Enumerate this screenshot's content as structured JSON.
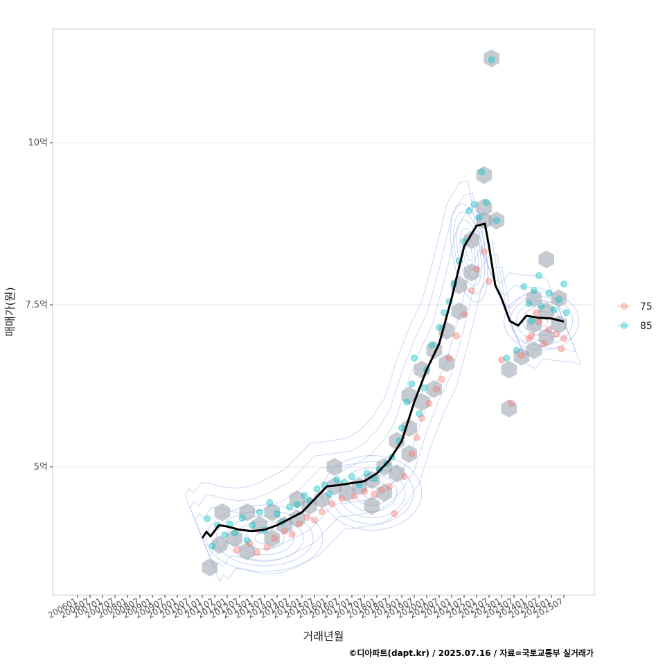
{
  "chart_data": {
    "type": "scatter",
    "xlabel": "거래년월",
    "ylabel": "매매가(원)",
    "caption": "©디아파트(dapt.kr) / 2025.07.16 / 자료=국토교통부 실거래가",
    "x_tick_labels": [
      "200601",
      "200607",
      "200701",
      "200707",
      "200801",
      "200807",
      "200901",
      "200907",
      "201001",
      "201007",
      "201101",
      "201107",
      "201201",
      "201207",
      "201301",
      "201307",
      "201401",
      "201407",
      "201501",
      "201507",
      "201601",
      "201607",
      "201701",
      "201707",
      "201801",
      "201807",
      "201901",
      "201907",
      "202001",
      "202007",
      "202101",
      "202107",
      "202201",
      "202207",
      "202301",
      "202307",
      "202401",
      "202407",
      "202501",
      "202507"
    ],
    "y_ticks": [
      {
        "value": 500000000,
        "label": "5억"
      },
      {
        "value": 750000000,
        "label": "7.5억"
      },
      {
        "value": 1000000000,
        "label": "10억"
      }
    ],
    "ylim": [
      310000000,
      1180000000
    ],
    "grid": true,
    "legend_position": "right",
    "series": [
      {
        "name": "75",
        "color": "#F8766D"
      },
      {
        "name": "85",
        "color": "#00BFC4"
      }
    ],
    "trend_line": {
      "color": "#000000",
      "points": [
        [
          "2011-01",
          390000000
        ],
        [
          "2011-03",
          400000000
        ],
        [
          "2011-05",
          393000000
        ],
        [
          "2011-09",
          410000000
        ],
        [
          "2012-01",
          408000000
        ],
        [
          "2012-07",
          403000000
        ],
        [
          "2013-01",
          401000000
        ],
        [
          "2013-07",
          403000000
        ],
        [
          "2014-01",
          410000000
        ],
        [
          "2014-07",
          420000000
        ],
        [
          "2015-01",
          430000000
        ],
        [
          "2015-07",
          450000000
        ],
        [
          "2016-01",
          470000000
        ],
        [
          "2016-07",
          472000000
        ],
        [
          "2017-01",
          475000000
        ],
        [
          "2017-07",
          478000000
        ],
        [
          "2018-01",
          490000000
        ],
        [
          "2018-07",
          510000000
        ],
        [
          "2019-01",
          540000000
        ],
        [
          "2019-07",
          600000000
        ],
        [
          "2020-01",
          650000000
        ],
        [
          "2020-07",
          690000000
        ],
        [
          "2021-01",
          760000000
        ],
        [
          "2021-07",
          840000000
        ],
        [
          "2022-01",
          872000000
        ],
        [
          "2022-05",
          875000000
        ],
        [
          "2022-07",
          840000000
        ],
        [
          "2022-10",
          780000000
        ],
        [
          "2023-01",
          760000000
        ],
        [
          "2023-05",
          725000000
        ],
        [
          "2023-09",
          718000000
        ],
        [
          "2024-01",
          733000000
        ],
        [
          "2024-07",
          730000000
        ],
        [
          "2025-01",
          729000000
        ],
        [
          "2025-07",
          724000000
        ]
      ]
    },
    "hex_bins": [
      [
        2011.3,
        345000000
      ],
      [
        2011.7,
        380000000
      ],
      [
        2011.8,
        430000000
      ],
      [
        2012.3,
        390000000
      ],
      [
        2012.8,
        370000000
      ],
      [
        2012.8,
        430000000
      ],
      [
        2013.3,
        410000000
      ],
      [
        2013.8,
        390000000
      ],
      [
        2013.8,
        430000000
      ],
      [
        2014.3,
        410000000
      ],
      [
        2014.8,
        450000000
      ],
      [
        2014.8,
        420000000
      ],
      [
        2015.3,
        440000000
      ],
      [
        2015.8,
        450000000
      ],
      [
        2016.3,
        470000000
      ],
      [
        2016.8,
        460000000
      ],
      [
        2016.3,
        500000000
      ],
      [
        2017.3,
        470000000
      ],
      [
        2017.8,
        480000000
      ],
      [
        2017.8,
        440000000
      ],
      [
        2018.3,
        500000000
      ],
      [
        2018.3,
        460000000
      ],
      [
        2018.8,
        540000000
      ],
      [
        2018.8,
        490000000
      ],
      [
        2019.3,
        520000000
      ],
      [
        2019.3,
        560000000
      ],
      [
        2019.8,
        600000000
      ],
      [
        2019.3,
        610000000
      ],
      [
        2019.8,
        650000000
      ],
      [
        2020.3,
        620000000
      ],
      [
        2020.3,
        680000000
      ],
      [
        2020.8,
        710000000
      ],
      [
        2020.8,
        660000000
      ],
      [
        2021.3,
        740000000
      ],
      [
        2021.3,
        780000000
      ],
      [
        2021.8,
        800000000
      ],
      [
        2021.8,
        850000000
      ],
      [
        2022.3,
        880000000
      ],
      [
        2022.3,
        950000000
      ],
      [
        2022.3,
        900000000
      ],
      [
        2022.8,
        880000000
      ],
      [
        2022.6,
        1130000000
      ],
      [
        2023.3,
        650000000
      ],
      [
        2023.8,
        670000000
      ],
      [
        2023.3,
        590000000
      ],
      [
        2024.3,
        720000000
      ],
      [
        2024.3,
        760000000
      ],
      [
        2024.8,
        700000000
      ],
      [
        2024.8,
        740000000
      ],
      [
        2025.3,
        720000000
      ],
      [
        2025.3,
        760000000
      ],
      [
        2024.8,
        820000000
      ],
      [
        2024.3,
        680000000
      ]
    ],
    "points_75": [
      [
        2012.4,
        372000000
      ],
      [
        2012.9,
        382000000
      ],
      [
        2013.2,
        368000000
      ],
      [
        2013.6,
        376000000
      ],
      [
        2013.9,
        390000000
      ],
      [
        2014.3,
        401000000
      ],
      [
        2014.6,
        396000000
      ],
      [
        2014.9,
        412000000
      ],
      [
        2015.2,
        422000000
      ],
      [
        2015.5,
        418000000
      ],
      [
        2015.8,
        431000000
      ],
      [
        2016.2,
        443000000
      ],
      [
        2016.6,
        451000000
      ],
      [
        2017.1,
        455000000
      ],
      [
        2017.5,
        462000000
      ],
      [
        2017.9,
        458000000
      ],
      [
        2018.2,
        464000000
      ],
      [
        2018.5,
        470000000
      ],
      [
        2018.7,
        428000000
      ],
      [
        2019.1,
        485000000
      ],
      [
        2019.4,
        520000000
      ],
      [
        2019.6,
        545000000
      ],
      [
        2019.8,
        575000000
      ],
      [
        2020.1,
        598000000
      ],
      [
        2020.4,
        620000000
      ],
      [
        2020.6,
        635000000
      ],
      [
        2020.9,
        668000000
      ],
      [
        2021.2,
        702000000
      ],
      [
        2021.5,
        735000000
      ],
      [
        2021.8,
        772000000
      ],
      [
        2022.0,
        805000000
      ],
      [
        2022.3,
        832000000
      ],
      [
        2022.5,
        786000000
      ],
      [
        2023.0,
        665000000
      ],
      [
        2023.4,
        598000000
      ],
      [
        2023.8,
        672000000
      ],
      [
        2024.2,
        702000000
      ],
      [
        2024.5,
        724000000
      ],
      [
        2024.7,
        690000000
      ],
      [
        2024.9,
        712000000
      ],
      [
        2025.2,
        705000000
      ],
      [
        2025.4,
        682000000
      ],
      [
        2025.5,
        698000000
      ],
      [
        2024.4,
        738000000
      ],
      [
        2024.1,
        698000000
      ]
    ],
    "points_85": [
      [
        2011.2,
        420000000
      ],
      [
        2011.4,
        378000000
      ],
      [
        2011.6,
        410000000
      ],
      [
        2011.9,
        395000000
      ],
      [
        2012.1,
        412000000
      ],
      [
        2012.3,
        398000000
      ],
      [
        2012.6,
        421000000
      ],
      [
        2012.8,
        387000000
      ],
      [
        2013.0,
        410000000
      ],
      [
        2013.3,
        430000000
      ],
      [
        2013.5,
        402000000
      ],
      [
        2013.7,
        445000000
      ],
      [
        2014.0,
        428000000
      ],
      [
        2014.2,
        415000000
      ],
      [
        2014.5,
        438000000
      ],
      [
        2014.8,
        442000000
      ],
      [
        2015.1,
        456000000
      ],
      [
        2015.3,
        448000000
      ],
      [
        2015.6,
        466000000
      ],
      [
        2015.9,
        472000000
      ],
      [
        2016.1,
        458000000
      ],
      [
        2016.4,
        480000000
      ],
      [
        2016.7,
        476000000
      ],
      [
        2017.0,
        485000000
      ],
      [
        2017.3,
        472000000
      ],
      [
        2017.6,
        490000000
      ],
      [
        2017.9,
        482000000
      ],
      [
        2018.1,
        496000000
      ],
      [
        2018.4,
        505000000
      ],
      [
        2018.6,
        515000000
      ],
      [
        2018.9,
        540000000
      ],
      [
        2019.0,
        560000000
      ],
      [
        2019.2,
        600000000
      ],
      [
        2019.4,
        628000000
      ],
      [
        2019.5,
        668000000
      ],
      [
        2019.7,
        582000000
      ],
      [
        2019.9,
        622000000
      ],
      [
        2020.0,
        650000000
      ],
      [
        2020.2,
        688000000
      ],
      [
        2020.5,
        715000000
      ],
      [
        2020.7,
        738000000
      ],
      [
        2020.9,
        755000000
      ],
      [
        2021.1,
        782000000
      ],
      [
        2021.3,
        818000000
      ],
      [
        2021.5,
        848000000
      ],
      [
        2021.7,
        895000000
      ],
      [
        2021.9,
        905000000
      ],
      [
        2022.1,
        885000000
      ],
      [
        2022.2,
        955000000
      ],
      [
        2022.4,
        908000000
      ],
      [
        2022.6,
        1128000000
      ],
      [
        2022.8,
        880000000
      ],
      [
        2023.2,
        668000000
      ],
      [
        2023.6,
        680000000
      ],
      [
        2023.9,
        778000000
      ],
      [
        2024.1,
        752000000
      ],
      [
        2024.3,
        772000000
      ],
      [
        2024.5,
        795000000
      ],
      [
        2024.6,
        748000000
      ],
      [
        2024.9,
        768000000
      ],
      [
        2025.1,
        742000000
      ],
      [
        2025.3,
        758000000
      ],
      [
        2025.5,
        782000000
      ],
      [
        2025.6,
        738000000
      ],
      [
        2024.2,
        725000000
      ]
    ],
    "density_centers": [
      [
        2013.5,
        390000000
      ],
      [
        2017.8,
        460000000
      ],
      [
        2021.7,
        830000000
      ],
      [
        2024.6,
        725000000
      ]
    ]
  }
}
